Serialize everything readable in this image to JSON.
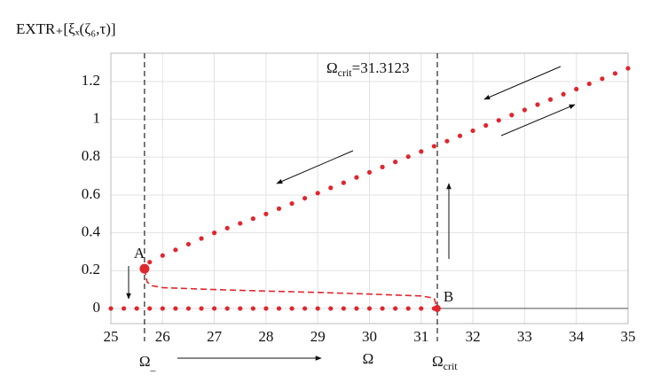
{
  "chart_data": {
    "type": "line",
    "y_label": "EXTR₊[ξₓ(ζ₆,τ)]",
    "xlim": [
      25,
      35
    ],
    "ylim": [
      -0.08,
      1.35
    ],
    "xticks": [
      25,
      26,
      27,
      28,
      29,
      30,
      31,
      32,
      33,
      34,
      35
    ],
    "yticks": [
      0,
      0.2,
      0.4,
      0.6,
      0.8,
      1,
      1.2
    ],
    "grid": true,
    "series": [
      {
        "color": "#e0262e",
        "style": "dotted",
        "x": [
          25.75,
          26,
          26.25,
          26.5,
          26.75,
          27,
          27.25,
          27.5,
          27.75,
          28,
          28.25,
          28.5,
          28.75,
          29,
          29.25,
          29.5,
          29.75,
          30,
          30.25,
          30.5,
          30.75,
          31,
          31.25,
          31.5,
          31.75,
          32,
          32.25,
          32.5,
          32.75,
          33,
          33.25,
          33.5,
          33.75,
          34,
          34.25,
          34.5,
          34.75,
          35
        ],
        "values": [
          0.245,
          0.28,
          0.31,
          0.34,
          0.37,
          0.4,
          0.425,
          0.45,
          0.475,
          0.5,
          0.528,
          0.555,
          0.583,
          0.61,
          0.638,
          0.665,
          0.693,
          0.72,
          0.748,
          0.775,
          0.803,
          0.83,
          0.858,
          0.885,
          0.913,
          0.94,
          0.968,
          0.995,
          1.023,
          1.05,
          1.078,
          1.105,
          1.133,
          1.16,
          1.188,
          1.215,
          1.243,
          1.27
        ]
      },
      {
        "color": "#e0262e",
        "style": "dashed",
        "x": [
          25.65,
          25.7,
          25.8,
          26,
          26.5,
          27,
          28,
          29,
          30,
          31,
          31.25,
          31.31
        ],
        "values": [
          0.21,
          0.14,
          0.12,
          0.11,
          0.105,
          0.1,
          0.092,
          0.085,
          0.076,
          0.066,
          0.055,
          0.0
        ]
      },
      {
        "color": "#e0262e",
        "style": "dotted",
        "x": [
          25,
          25.25,
          25.5,
          25.75,
          26,
          26.25,
          26.5,
          26.75,
          27,
          27.25,
          27.5,
          27.75,
          28,
          28.25,
          28.5,
          28.75,
          29,
          29.25,
          29.5,
          29.75,
          30,
          30.25,
          30.5,
          30.75,
          31,
          31.25
        ],
        "values": [
          0,
          0,
          0,
          0,
          0,
          0,
          0,
          0,
          0,
          0,
          0,
          0,
          0,
          0,
          0,
          0,
          0,
          0,
          0,
          0,
          0,
          0,
          0,
          0,
          0,
          0
        ]
      },
      {
        "color": "#555555",
        "style": "solid",
        "x": [
          31.31,
          35
        ],
        "values": [
          0,
          0
        ]
      }
    ],
    "points": [
      {
        "label": "A",
        "x": 25.65,
        "y": 0.21,
        "color": "#e0262e"
      },
      {
        "label": "B",
        "x": 31.31,
        "y": 0,
        "color": "#e0262e"
      }
    ],
    "vlines": [
      {
        "x": 25.65,
        "label": "Ω",
        "sub": "_"
      },
      {
        "x": 31.3123,
        "label": "Ω",
        "sub": "crit"
      }
    ],
    "x_label": "Ω",
    "annotation": {
      "text": "Ω",
      "sub": "crit",
      "rest": "=31.3123"
    }
  }
}
